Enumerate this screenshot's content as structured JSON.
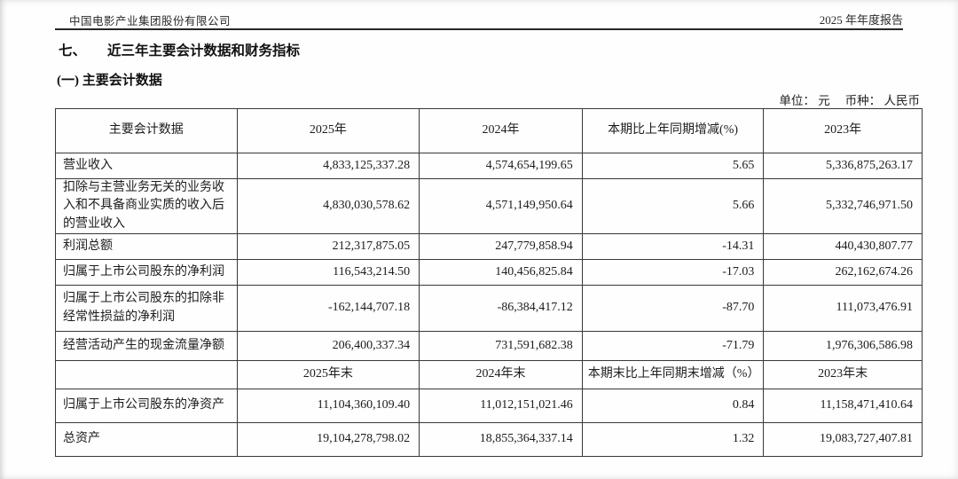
{
  "page_header": {
    "company_name": "中国电影产业集团股份有限公司",
    "report_title": "2025 年年度报告"
  },
  "section": {
    "number": "七、",
    "title": "近三年主要会计数据和财务指标"
  },
  "subsection_title": "(一) 主要会计数据",
  "unit_note": "单位： 元　 币种： 人民币",
  "table": {
    "columns": {
      "c1": "主要会计数据",
      "c2": "2025年",
      "c3": "2024年",
      "c4": "本期比上年同期增减(%)",
      "c5": "2023年"
    },
    "annual_rows": [
      {
        "label": "营业收入",
        "y2025": "4,833,125,337.28",
        "y2024": "4,574,654,199.65",
        "change": "5.65",
        "y2023": "5,336,875,263.17"
      },
      {
        "label": "扣除与主营业务无关的业务收入和不具备商业实质的收入后的营业收入",
        "y2025": "4,830,030,578.62",
        "y2024": "4,571,149,950.64",
        "change": "5.66",
        "y2023": "5,332,746,971.50"
      },
      {
        "label": "利润总额",
        "y2025": "212,317,875.05",
        "y2024": "247,779,858.94",
        "change": "-14.31",
        "y2023": "440,430,807.77"
      },
      {
        "label": "归属于上市公司股东的净利润",
        "y2025": "116,543,214.50",
        "y2024": "140,456,825.84",
        "change": "-17.03",
        "y2023": "262,162,674.26"
      },
      {
        "label": "归属于上市公司股东的扣除非经常性损益的净利润",
        "y2025": "-162,144,707.18",
        "y2024": "-86,384,417.12",
        "change": "-87.70",
        "y2023": "111,073,476.91"
      },
      {
        "label": "经营活动产生的现金流量净额",
        "y2025": "206,400,337.34",
        "y2024": "731,591,682.38",
        "change": "-71.79",
        "y2023": "1,976,306,586.98"
      }
    ],
    "period_end_header": {
      "c1": "",
      "c2": "2025年末",
      "c3": "2024年末",
      "c4": "本期末比上年同期末增减（%）",
      "c5": "2023年末"
    },
    "period_end_rows": [
      {
        "label": "归属于上市公司股东的净资产",
        "y2025": "11,104,360,109.40",
        "y2024": "11,012,151,021.46",
        "change": "0.84",
        "y2023": "11,158,471,410.64"
      },
      {
        "label": "总资产",
        "y2025": "19,104,278,798.02",
        "y2024": "18,855,364,337.14",
        "change": "1.32",
        "y2023": "19,083,727,407.81"
      }
    ]
  }
}
